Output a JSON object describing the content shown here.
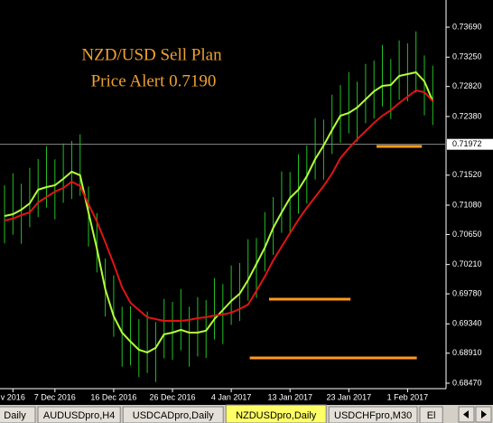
{
  "chart_data": {
    "type": "hilo",
    "annotations": [
      "NZD/USD Sell Plan",
      "Price Alert 0.7190"
    ],
    "categories": [
      null,
      "v 2016",
      null,
      null,
      null,
      null,
      "7 Dec 2016",
      null,
      null,
      null,
      null,
      null,
      null,
      "16 Dec 2016",
      null,
      null,
      null,
      null,
      null,
      null,
      "26 Dec 2016",
      null,
      null,
      null,
      null,
      null,
      null,
      "4 Jan 2017",
      null,
      null,
      null,
      null,
      null,
      null,
      "13 Jan 2017",
      null,
      null,
      null,
      null,
      null,
      null,
      "23 Jan 2017",
      null,
      null,
      null,
      null,
      null,
      null,
      "1 Feb 2017",
      null,
      null,
      null
    ],
    "xlim": [
      -0.54,
      52.58
    ],
    "bars": {
      "color": "#22c022",
      "high": [
        0.71371,
        0.71548,
        0.71394,
        0.71627,
        0.71756,
        0.71945,
        0.71752,
        0.71985,
        0.72021,
        0.72118,
        0.71354,
        0.70964,
        0.70298,
        0.70051,
        0.69592,
        0.696,
        0.6941,
        0.69521,
        0.69367,
        0.69706,
        0.69662,
        0.69852,
        0.69592,
        0.69732,
        0.69689,
        0.70011,
        0.69923,
        0.70196,
        0.70232,
        0.70581,
        0.70599,
        0.70978,
        0.71199,
        0.71574,
        0.71566,
        0.71826,
        0.71954,
        0.72356,
        0.72335,
        0.727,
        0.72842,
        0.73032,
        0.72891,
        0.73151,
        0.732,
        0.73429,
        0.73223,
        0.73495,
        0.73452,
        0.73628,
        0.73276,
        0.73124
      ],
      "low": [
        0.70521,
        0.70648,
        0.70514,
        0.70757,
        0.70906,
        0.71045,
        0.70872,
        0.71115,
        0.71171,
        0.71218,
        0.70474,
        0.70094,
        0.69448,
        0.69151,
        0.68712,
        0.6873,
        0.6856,
        0.68621,
        0.68487,
        0.68836,
        0.68812,
        0.68952,
        0.68712,
        0.68862,
        0.68839,
        0.69111,
        0.69043,
        0.69326,
        0.69382,
        0.69681,
        0.69719,
        0.70108,
        0.70349,
        0.70674,
        0.70686,
        0.70956,
        0.71104,
        0.71456,
        0.71455,
        0.7183,
        0.71992,
        0.72132,
        0.72011,
        0.72281,
        0.7235,
        0.72529,
        0.72343,
        0.72625,
        0.72602,
        0.72728,
        0.72396,
        0.72254
      ]
    },
    "series": [
      {
        "color": "#b4ff3c",
        "values": [
          0.70921,
          0.70948,
          0.71014,
          0.71107,
          0.71306,
          0.71345,
          0.71372,
          0.71465,
          0.71571,
          0.71518,
          0.70974,
          0.70444,
          0.69848,
          0.69451,
          0.69212,
          0.6908,
          0.6896,
          0.68921,
          0.68987,
          0.69186,
          0.69212,
          0.69252,
          0.69212,
          0.69212,
          0.69239,
          0.69411,
          0.69543,
          0.69676,
          0.69782,
          0.69981,
          0.70219,
          0.70458,
          0.70749,
          0.70974,
          0.71186,
          0.71306,
          0.71504,
          0.71756,
          0.71955,
          0.7218,
          0.72392,
          0.72432,
          0.72511,
          0.72631,
          0.7275,
          0.72829,
          0.72843,
          0.72975,
          0.73002,
          0.73028,
          0.72896,
          0.72604
        ]
      },
      {
        "color": "#e01414",
        "values": [
          0.70855,
          0.70882,
          0.70935,
          0.70974,
          0.7112,
          0.712,
          0.71279,
          0.71332,
          0.71425,
          0.71359,
          0.71094,
          0.70842,
          0.70537,
          0.70219,
          0.69875,
          0.69649,
          0.69543,
          0.69437,
          0.69411,
          0.69384,
          0.69384,
          0.69384,
          0.69398,
          0.69424,
          0.69437,
          0.69464,
          0.69477,
          0.69504,
          0.69557,
          0.69623,
          0.69822,
          0.70034,
          0.70272,
          0.70471,
          0.7067,
          0.70868,
          0.71041,
          0.712,
          0.71359,
          0.71544,
          0.71769,
          0.71915,
          0.72048,
          0.72167,
          0.72286,
          0.72392,
          0.72472,
          0.72578,
          0.7267,
          0.72763,
          0.72737,
          0.72604
        ]
      }
    ],
    "levels": [
      {
        "value": 0.71942,
        "from": 44.3,
        "to": 49.7
      },
      {
        "value": 0.69702,
        "from": 31.5,
        "to": 41.2
      },
      {
        "value": 0.68841,
        "from": 29.2,
        "to": 49.1
      }
    ],
    "level_color": "#ff9a1a",
    "last_price": 0.71972,
    "ylim": [
      0.6839,
      0.74088
    ],
    "yticks": [
      {
        "value": 0.7369,
        "label": "0.73690"
      },
      {
        "value": 0.7325,
        "label": "0.73250"
      },
      {
        "value": 0.7282,
        "label": "0.72820"
      },
      {
        "value": 0.7238,
        "label": "0.72380"
      },
      {
        "value": 0.7152,
        "label": "0.71520"
      },
      {
        "value": 0.7108,
        "label": "0.71080"
      },
      {
        "value": 0.7065,
        "label": "0.70650"
      },
      {
        "value": 0.7021,
        "label": "0.70210"
      },
      {
        "value": 0.6978,
        "label": "0.69780"
      },
      {
        "value": 0.6934,
        "label": "0.69340"
      },
      {
        "value": 0.6891,
        "label": "0.68910"
      },
      {
        "value": 0.6847,
        "label": "0.68470"
      }
    ]
  },
  "tabs": {
    "items": [
      "Daily",
      "AUDUSDpro,H4",
      "USDCADpro,Daily",
      "NZDUSDpro,Daily",
      "USDCHFpro,M30",
      "El"
    ],
    "active": 3
  }
}
